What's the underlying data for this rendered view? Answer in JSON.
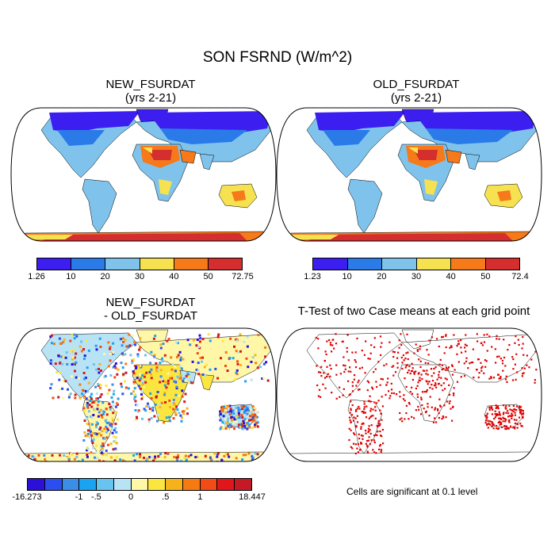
{
  "figure": {
    "title": "SON FSRND (W/m^2)",
    "panels": [
      {
        "title_line1": "NEW_FSURDAT",
        "title_line2": "(yrs 2-21)",
        "colorbar": {
          "colors": [
            "#3c1ef0",
            "#2a7ae8",
            "#7fc3ec",
            "#f6e251",
            "#f6791a",
            "#d42e2e"
          ],
          "labels": [
            "1.26",
            "10",
            "20",
            "30",
            "40",
            "50",
            "72.75"
          ]
        }
      },
      {
        "title_line1": "OLD_FSURDAT",
        "title_line2": "(yrs 2-21)",
        "colorbar": {
          "colors": [
            "#3c1ef0",
            "#2a7ae8",
            "#7fc3ec",
            "#f6e251",
            "#f6791a",
            "#d42e2e"
          ],
          "labels": [
            "1.23",
            "10",
            "20",
            "30",
            "40",
            "50",
            "72.4"
          ]
        }
      },
      {
        "title_line1": "NEW_FSURDAT",
        "title_line2": "- OLD_FSURDAT",
        "colorbar": {
          "colors": [
            "#2a10d8",
            "#2a4ef0",
            "#3a8ee8",
            "#1aa3f0",
            "#68c3f0",
            "#b7e3f5",
            "#fff7a8",
            "#fbe640",
            "#f7b21a",
            "#f57a12",
            "#f24b16",
            "#e0161a",
            "#c41a26"
          ],
          "labels": [
            "-16.273",
            "-1",
            "-.5",
            "0",
            ".5",
            "1",
            "18.447"
          ]
        }
      },
      {
        "title_line1": "T-Test of two Case means at each grid point",
        "note": "Cells are significant at 0.1 level"
      }
    ]
  }
}
